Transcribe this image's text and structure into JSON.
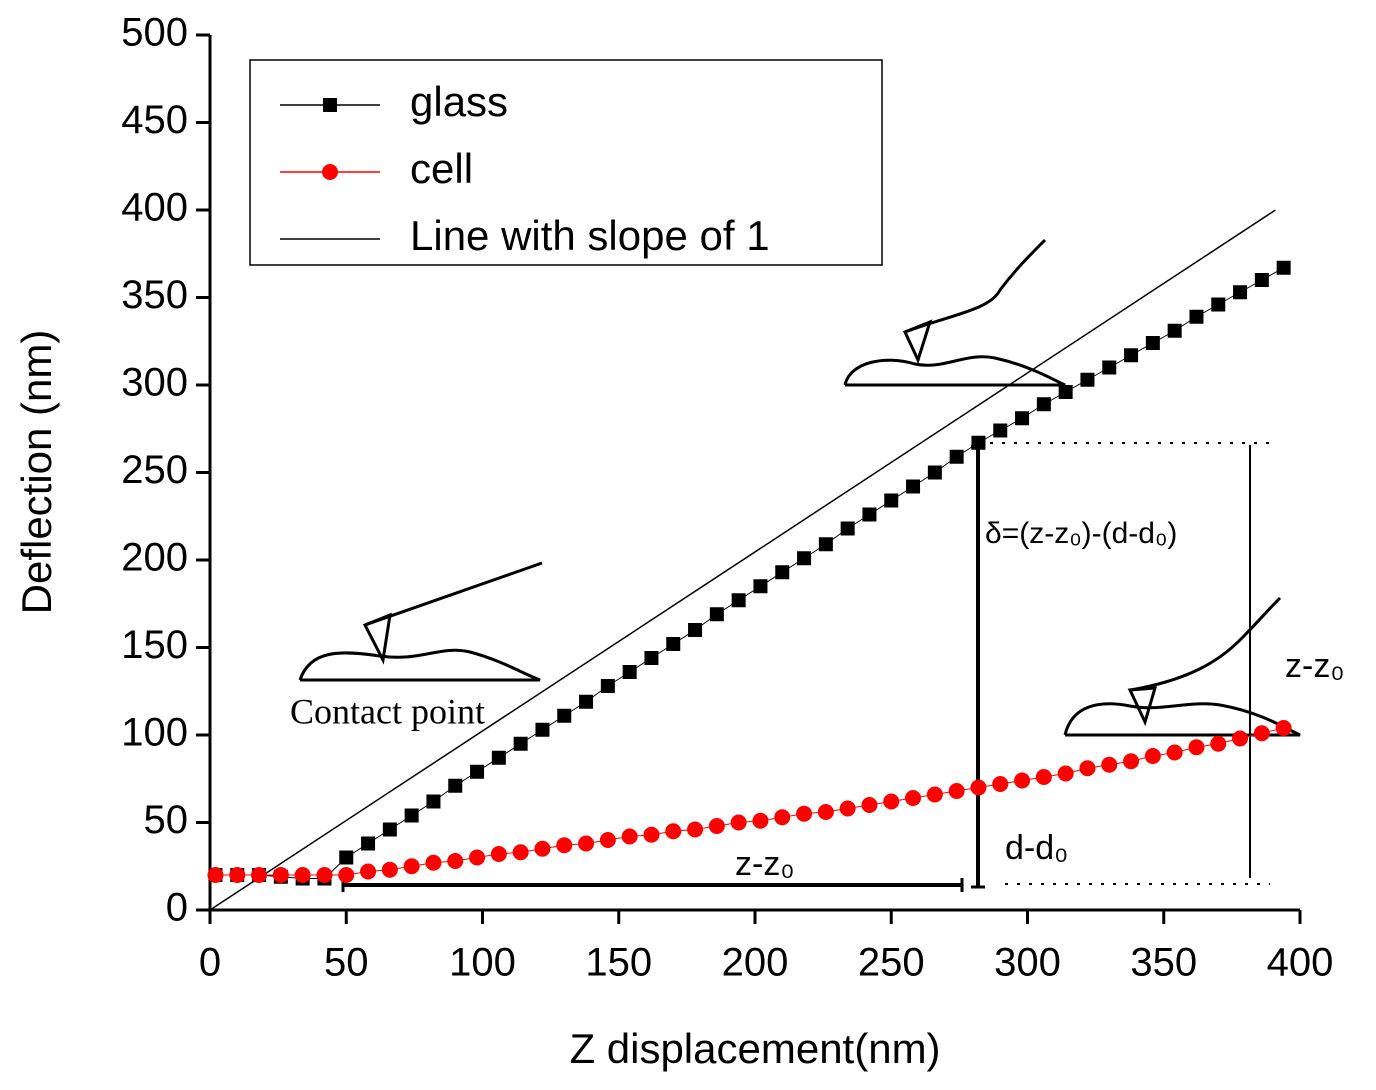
{
  "chart_data": {
    "type": "line",
    "x_label": "Z displacement(nm)",
    "y_label": "Deflection (nm)",
    "xlim": [
      0,
      400
    ],
    "xticks": [
      0,
      50,
      100,
      150,
      200,
      250,
      300,
      350,
      400
    ],
    "ylim": [
      0,
      500
    ],
    "yticks": [
      0,
      50,
      100,
      150,
      200,
      250,
      300,
      350,
      400,
      450,
      500
    ],
    "x": [
      2,
      10,
      18,
      26,
      34,
      42,
      50,
      58,
      66,
      74,
      82,
      90,
      98,
      106,
      114,
      122,
      130,
      138,
      146,
      154,
      162,
      170,
      178,
      186,
      194,
      202,
      210,
      218,
      226,
      234,
      242,
      250,
      258,
      266,
      274,
      282,
      290,
      298,
      306,
      314,
      322,
      330,
      338,
      346,
      354,
      362,
      370,
      378,
      386,
      394
    ],
    "series": [
      {
        "name": "glass",
        "color": "#000000",
        "marker": "square",
        "values": [
          20,
          20,
          20,
          19,
          18,
          18,
          30,
          38,
          46,
          54,
          62,
          71,
          79,
          87,
          95,
          103,
          111,
          119,
          128,
          136,
          144,
          152,
          160,
          169,
          177,
          185,
          193,
          201,
          209,
          218,
          226,
          234,
          242,
          250,
          259,
          267,
          274,
          281,
          289,
          296,
          303,
          310,
          317,
          324,
          331,
          339,
          346,
          353,
          360,
          367
        ]
      },
      {
        "name": "cell",
        "color": "#ff0000",
        "marker": "circle",
        "values": [
          20,
          20,
          20,
          20,
          20,
          20,
          20,
          22,
          23,
          25,
          27,
          28,
          30,
          32,
          33,
          35,
          37,
          38,
          40,
          42,
          43,
          45,
          46,
          48,
          50,
          51,
          53,
          55,
          56,
          58,
          60,
          62,
          64,
          66,
          68,
          70,
          72,
          74,
          76,
          78,
          81,
          83,
          85,
          88,
          90,
          93,
          95,
          98,
          101,
          104
        ]
      },
      {
        "name": "Line with slope of 1",
        "color": "#000000",
        "marker": "none",
        "x": [
          0,
          391
        ],
        "values": [
          0,
          400
        ]
      }
    ],
    "annotations": [
      "Contact point",
      "δ=(z-z₀)-(d-d₀)",
      "z-z₀",
      "d-d₀",
      "z-z₀"
    ]
  }
}
